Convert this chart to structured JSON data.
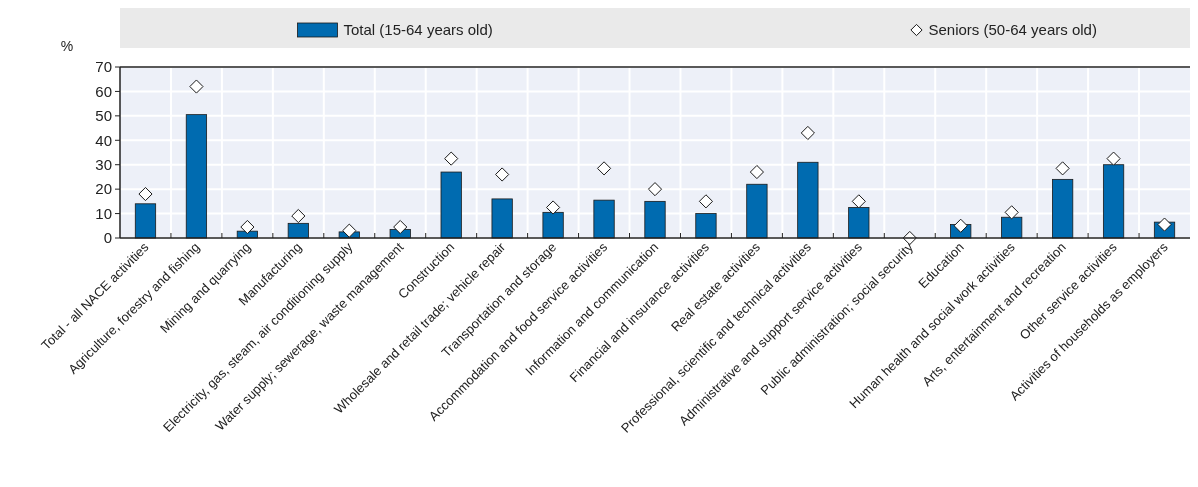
{
  "chart_data": {
    "type": "bar",
    "ylabel": "%",
    "categories": [
      "Total - all NACE activities",
      "Agriculture, forestry and fishing",
      "Mining and quarrying",
      "Manufacturing",
      "Electricity, gas, steam, air conditioning supply",
      "Water supply; sewerage, waste management",
      "Construction",
      "Wholesale and retail trade; vehicle repair",
      "Transportation and storage",
      "Accommodation and food service activities",
      "Information and communication",
      "Financial and insurance activities",
      "Real estate activities",
      "Professional, scientific and technical activities",
      "Administrative and support service activities",
      "Public administration; social security",
      "Education",
      "Human health and social work activities",
      "Arts, entertainment and recreation",
      "Other service activities",
      "Activities of households as employers"
    ],
    "series": [
      {
        "name": "Total (15-64 years old)",
        "color": "#006bb0",
        "values": [
          14,
          50.5,
          2.8,
          6,
          2.5,
          3.5,
          27,
          16,
          10.5,
          15.5,
          15,
          10,
          22,
          31,
          12.5,
          null,
          5.5,
          8.5,
          24,
          30,
          6.5
        ]
      },
      {
        "name": "Seniors (50-64 years old)",
        "type": "scatter",
        "marker": "diamond",
        "color": "#ffffff",
        "values": [
          18,
          62,
          4.5,
          9,
          3,
          4.5,
          32.5,
          26,
          12.5,
          28.5,
          20,
          15,
          27,
          43,
          15,
          0,
          5,
          10.5,
          28.5,
          32.5,
          5.5
        ]
      }
    ],
    "ylim": [
      0,
      70
    ],
    "yticks": [
      0,
      10,
      20,
      30,
      40,
      50,
      60,
      70
    ],
    "grid": true,
    "legend": "top"
  }
}
